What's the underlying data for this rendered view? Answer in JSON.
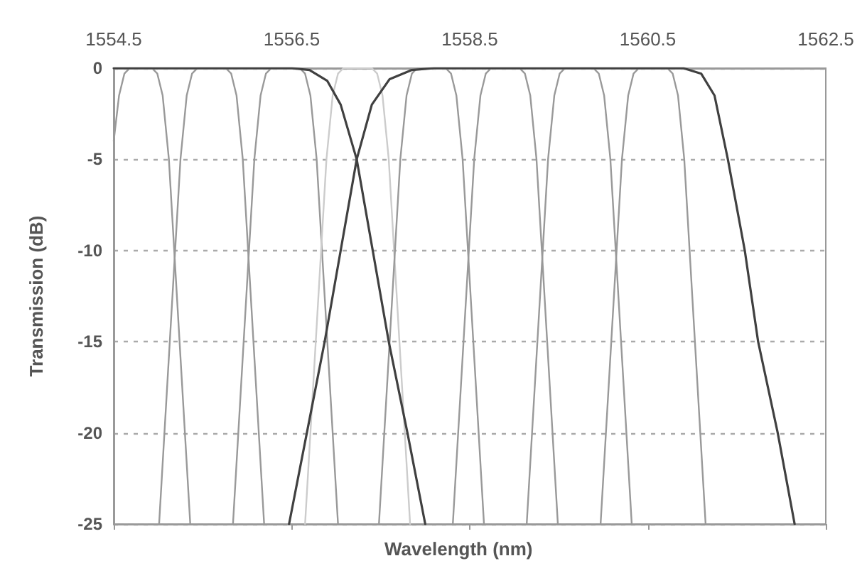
{
  "chart_data": {
    "type": "line",
    "xlabel": "Wavelength (nm)",
    "ylabel": "Transmission (dB)",
    "xlim": [
      1554.5,
      1562.5
    ],
    "xticks": [
      1554.5,
      1556.5,
      1558.5,
      1560.5,
      1562.5
    ],
    "ylim": [
      -25,
      0
    ],
    "yticks": [
      -25,
      -20,
      -15,
      -10,
      -5,
      0
    ],
    "grid": "y",
    "marker": "none",
    "line_style": "solid",
    "tick_labels": "xy",
    "series": [
      {
        "color": "#999999",
        "x": [
          1554.5,
          1554.56,
          1554.62,
          1554.68,
          1554.93,
          1554.99,
          1555.05,
          1555.12,
          1555.24,
          1555.36
        ],
        "values": [
          -4,
          -1.5,
          -0.3,
          0,
          0,
          -0.3,
          -1.5,
          -5,
          -15,
          -25
        ]
      },
      {
        "color": "#999999",
        "x": [
          1555.01,
          1555.13,
          1555.25,
          1555.32,
          1555.38,
          1555.44,
          1555.76,
          1555.82,
          1555.88,
          1555.95,
          1556.07,
          1556.19
        ],
        "values": [
          -25,
          -15,
          -5,
          -1.5,
          -0.3,
          0,
          0,
          -0.3,
          -1.5,
          -5,
          -15,
          -25
        ]
      },
      {
        "color": "#999999",
        "x": [
          1555.84,
          1555.96,
          1556.08,
          1556.15,
          1556.21,
          1556.27,
          1556.59,
          1556.65,
          1556.71,
          1556.78,
          1556.9,
          1557.02
        ],
        "values": [
          -25,
          -15,
          -5,
          -1.5,
          -0.3,
          0,
          0,
          -0.3,
          -1.5,
          -5,
          -15,
          -25
        ]
      },
      {
        "color": "#cccccc",
        "x": [
          1556.65,
          1556.77,
          1556.89,
          1556.96,
          1557.02,
          1557.08,
          1557.4,
          1557.46,
          1557.52,
          1557.59,
          1557.71,
          1557.83
        ],
        "values": [
          -25,
          -15,
          -5,
          -1.5,
          -0.3,
          0,
          0,
          -0.3,
          -1.5,
          -5,
          -15,
          -25
        ]
      },
      {
        "color": "#999999",
        "x": [
          1557.48,
          1557.6,
          1557.72,
          1557.79,
          1557.85,
          1557.91,
          1558.23,
          1558.29,
          1558.35,
          1558.42,
          1558.54,
          1558.66
        ],
        "values": [
          -25,
          -15,
          -5,
          -1.5,
          -0.3,
          0,
          0,
          -0.3,
          -1.5,
          -5,
          -15,
          -25
        ]
      },
      {
        "color": "#999999",
        "x": [
          1558.31,
          1558.43,
          1558.55,
          1558.62,
          1558.68,
          1558.74,
          1559.06,
          1559.12,
          1559.18,
          1559.25,
          1559.37,
          1559.49
        ],
        "values": [
          -25,
          -15,
          -5,
          -1.5,
          -0.3,
          0,
          0,
          -0.3,
          -1.5,
          -5,
          -15,
          -25
        ]
      },
      {
        "color": "#999999",
        "x": [
          1559.14,
          1559.26,
          1559.38,
          1559.45,
          1559.51,
          1559.57,
          1559.89,
          1559.95,
          1560.01,
          1560.08,
          1560.2,
          1560.32
        ],
        "values": [
          -25,
          -15,
          -5,
          -1.5,
          -0.3,
          0,
          0,
          -0.3,
          -1.5,
          -5,
          -15,
          -25
        ]
      },
      {
        "color": "#999999",
        "x": [
          1559.97,
          1560.09,
          1560.21,
          1560.28,
          1560.34,
          1560.4,
          1560.72,
          1560.78,
          1560.84,
          1560.91,
          1561.03,
          1561.15
        ],
        "values": [
          -25,
          -15,
          -5,
          -1.5,
          -0.3,
          0,
          0,
          -0.3,
          -1.5,
          -5,
          -15,
          -25
        ]
      },
      {
        "color": "#404040",
        "x": [
          1554.5,
          1556.5,
          1556.7,
          1556.9,
          1557.05,
          1557.23,
          1557.41,
          1557.59,
          1557.8,
          1558.0
        ],
        "values": [
          0,
          0,
          -0.1,
          -0.7,
          -2,
          -5,
          -10,
          -15,
          -20,
          -25
        ]
      },
      {
        "color": "#404040",
        "x": [
          1556.47,
          1556.67,
          1556.87,
          1557.05,
          1557.23,
          1557.4,
          1557.6,
          1557.85,
          1558.1,
          1560.9,
          1561.1,
          1561.25,
          1561.4,
          1561.59,
          1561.74,
          1561.96,
          1562.15
        ],
        "values": [
          -25,
          -20,
          -15,
          -10,
          -5,
          -2,
          -0.6,
          -0.1,
          0,
          0,
          -0.3,
          -1.5,
          -5,
          -10,
          -15,
          -20,
          -25
        ]
      }
    ]
  }
}
